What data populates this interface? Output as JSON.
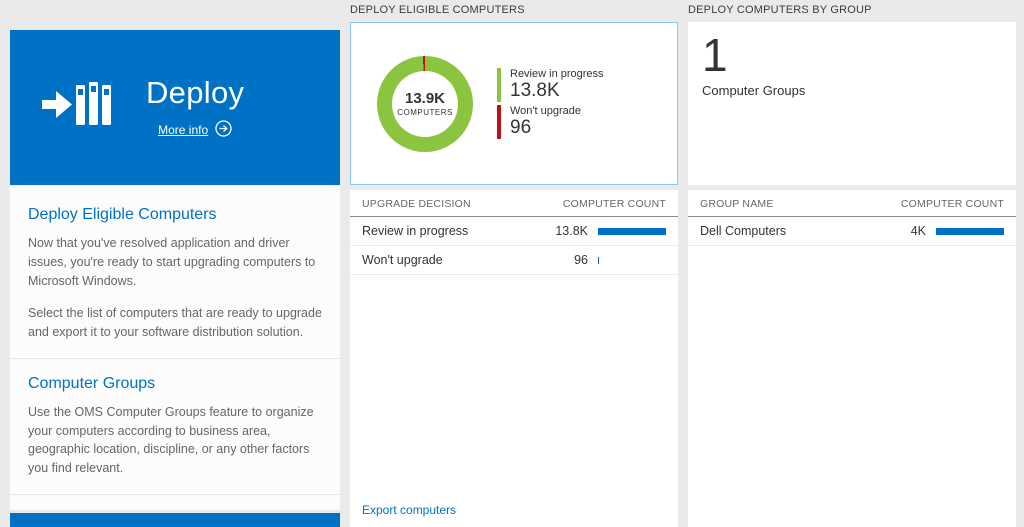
{
  "colors": {
    "accent_blue": "#0072c6",
    "bar_blue": "#0072c6",
    "donut_green": "#8bc53f",
    "legend_red": "#ba141a",
    "chart_card_border": "#8dc6ec"
  },
  "left_panel": {
    "tile": {
      "title": "Deploy",
      "more_info": "More info"
    },
    "sections": [
      {
        "heading": "Deploy Eligible Computers",
        "paragraphs": [
          "Now that you've resolved application and driver issues, you're ready to start upgrading computers to Microsoft Windows.",
          "Select the list of computers that are ready to upgrade and export it to your software distribution solution."
        ]
      },
      {
        "heading": "Computer Groups",
        "paragraphs": [
          "Use the OMS Computer Groups feature to organize your computers according to business area, geographic location, discipline, or any other factors you find relevant."
        ]
      }
    ]
  },
  "middle_panel": {
    "header": "DEPLOY ELIGIBLE COMPUTERS",
    "donut": {
      "center_value": "13.9K",
      "center_label": "COMPUTERS",
      "segments": [
        {
          "label": "Review in progress",
          "value": "13.8K",
          "numeric": 13800,
          "color": "#8bc53f"
        },
        {
          "label": "Won't upgrade",
          "value": "96",
          "numeric": 96,
          "color": "#ba141a"
        }
      ]
    },
    "table": {
      "columns": [
        "UPGRADE DECISION",
        "COMPUTER COUNT"
      ],
      "rows": [
        {
          "label": "Review in progress",
          "value": "13.8K",
          "bar_pct": 100
        },
        {
          "label": "Won't upgrade",
          "value": "96",
          "bar_pct": 2
        }
      ]
    },
    "footer_link": "Export computers"
  },
  "right_panel": {
    "header": "DEPLOY COMPUTERS BY GROUP",
    "summary": {
      "value": "1",
      "label": "Computer Groups"
    },
    "table": {
      "columns": [
        "GROUP NAME",
        "COMPUTER COUNT"
      ],
      "rows": [
        {
          "label": "Dell Computers",
          "value": "4K",
          "bar_pct": 100
        }
      ]
    }
  },
  "chart_data": [
    {
      "type": "pie",
      "title": "Deploy Eligible Computers",
      "center_value": "13.9K",
      "center_label": "COMPUTERS",
      "labels": [
        "Review in progress",
        "Won't upgrade"
      ],
      "values": [
        13800,
        96
      ],
      "colors": [
        "#8bc53f",
        "#ba141a"
      ],
      "legend_position": "right"
    },
    {
      "type": "table",
      "columns": [
        "UPGRADE DECISION",
        "COMPUTER COUNT"
      ],
      "rows": [
        [
          "Review in progress",
          "13.8K"
        ],
        [
          "Won't upgrade",
          "96"
        ]
      ]
    },
    {
      "type": "table",
      "columns": [
        "GROUP NAME",
        "COMPUTER COUNT"
      ],
      "rows": [
        [
          "Dell Computers",
          "4K"
        ]
      ]
    }
  ]
}
